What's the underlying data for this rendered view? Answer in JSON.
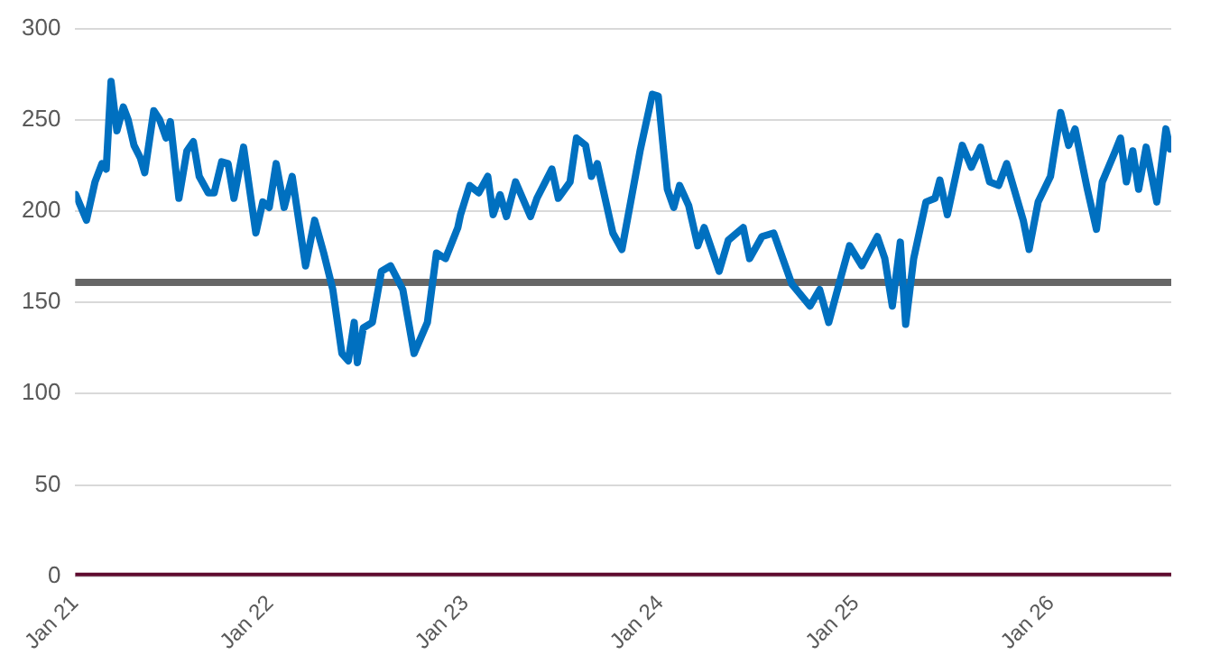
{
  "chart_data": {
    "type": "line",
    "x": [
      "2021-01-02",
      "2021-01-22",
      "2021-02-07",
      "2021-02-20",
      "2021-02-28",
      "2021-03-09",
      "2021-03-20",
      "2021-04-01",
      "2021-04-10",
      "2021-04-21",
      "2021-05-03",
      "2021-05-11",
      "2021-05-28",
      "2021-06-08",
      "2021-06-20",
      "2021-06-28",
      "2021-07-14",
      "2021-07-29",
      "2021-08-10",
      "2021-08-21",
      "2021-09-07",
      "2021-09-18",
      "2021-10-02",
      "2021-10-14",
      "2021-10-25",
      "2021-11-12",
      "2021-12-05",
      "2021-12-18",
      "2021-12-30",
      "2022-01-12",
      "2022-01-27",
      "2022-02-11",
      "2022-03-08",
      "2022-03-25",
      "2022-04-11",
      "2022-04-28",
      "2022-05-15",
      "2022-05-27",
      "2022-06-07",
      "2022-06-13",
      "2022-06-24",
      "2022-07-11",
      "2022-07-28",
      "2022-08-14",
      "2022-09-06",
      "2022-09-27",
      "2022-10-22",
      "2022-11-08",
      "2022-11-25",
      "2022-12-18",
      "2022-12-23",
      "2023-01-09",
      "2023-01-26",
      "2023-02-12",
      "2023-02-22",
      "2023-03-07",
      "2023-03-19",
      "2023-04-05",
      "2023-05-03",
      "2023-05-15",
      "2023-06-12",
      "2023-06-24",
      "2023-07-16",
      "2023-07-28",
      "2023-08-14",
      "2023-08-25",
      "2023-09-05",
      "2023-10-04",
      "2023-10-21",
      "2023-11-24",
      "2023-12-17",
      "2023-12-28",
      "2024-01-14",
      "2024-01-26",
      "2024-02-06",
      "2024-02-23",
      "2024-03-11",
      "2024-03-23",
      "2024-04-20",
      "2024-05-07",
      "2024-06-04",
      "2024-06-16",
      "2024-07-09",
      "2024-07-31",
      "2024-08-17",
      "2024-09-03",
      "2024-10-07",
      "2024-10-25",
      "2024-11-11",
      "2024-12-04",
      "2024-12-20",
      "2025-01-12",
      "2025-02-10",
      "2025-02-24",
      "2025-03-10",
      "2025-03-25",
      "2025-04-04",
      "2025-04-19",
      "2025-05-12",
      "2025-05-29",
      "2025-06-07",
      "2025-06-21",
      "2025-07-19",
      "2025-08-05",
      "2025-08-22",
      "2025-09-08",
      "2025-09-25",
      "2025-10-10",
      "2025-10-24",
      "2025-11-10",
      "2025-11-21",
      "2025-12-08",
      "2025-12-31",
      "2026-01-19",
      "2026-02-03",
      "2026-02-15",
      "2026-03-10",
      "2026-03-27",
      "2026-04-07",
      "2026-04-30",
      "2026-05-11",
      "2026-05-22",
      "2026-06-03",
      "2026-06-14",
      "2026-06-28",
      "2026-07-18",
      "2026-08-04",
      "2026-08-12"
    ],
    "series": [
      {
        "color": "#0070c0",
        "values": [
          209,
          195,
          216,
          226,
          223,
          271,
          244,
          257,
          250,
          236,
          229,
          221,
          255,
          250,
          240,
          249,
          207,
          233,
          238,
          219,
          210,
          210,
          227,
          226,
          207,
          235,
          188,
          205,
          202,
          226,
          202,
          219,
          170,
          195,
          177,
          157,
          122,
          118,
          139,
          117,
          136,
          139,
          167,
          170,
          157,
          122,
          139,
          177,
          174,
          191,
          198,
          214,
          210,
          219,
          198,
          209,
          197,
          216,
          197,
          207,
          223,
          207,
          216,
          240,
          236,
          219,
          226,
          188,
          179,
          233,
          264,
          263,
          212,
          202,
          214,
          203,
          181,
          191,
          167,
          184,
          191,
          174,
          186,
          188,
          174,
          160,
          148,
          157,
          139,
          164,
          181,
          170,
          186,
          174,
          148,
          183,
          138,
          174,
          205,
          207,
          217,
          198,
          236,
          224,
          235,
          216,
          214,
          226,
          212,
          195,
          179,
          205,
          219,
          254,
          236,
          245,
          212,
          190,
          216,
          232,
          240,
          216,
          233,
          212,
          235,
          205,
          245,
          234
        ]
      },
      {
        "color": "#5e0a2e",
        "x": [
          "2021-01-01",
          "2026-08-14"
        ],
        "values": [
          0,
          0
        ]
      }
    ],
    "xlim": [
      "2021-01-01",
      "2026-08-14"
    ],
    "xticks": [
      {
        "value": "2021-01-01",
        "label": "Jan 21"
      },
      {
        "value": "2022-01-01",
        "label": "Jan 22"
      },
      {
        "value": "2023-01-01",
        "label": "Jan 23"
      },
      {
        "value": "2024-01-01",
        "label": "Jan 24"
      },
      {
        "value": "2025-01-01",
        "label": "Jan 25"
      },
      {
        "value": "2026-01-01",
        "label": "Jan 26"
      }
    ],
    "ylim": [
      0,
      300
    ],
    "yticks": [
      0,
      50,
      100,
      150,
      200,
      250,
      300
    ],
    "grid": "y",
    "legend": false,
    "marker": "none",
    "line_style": "solid",
    "ref_lines": [
      {
        "axis": "y",
        "value": 161,
        "color": "#666666"
      }
    ]
  }
}
